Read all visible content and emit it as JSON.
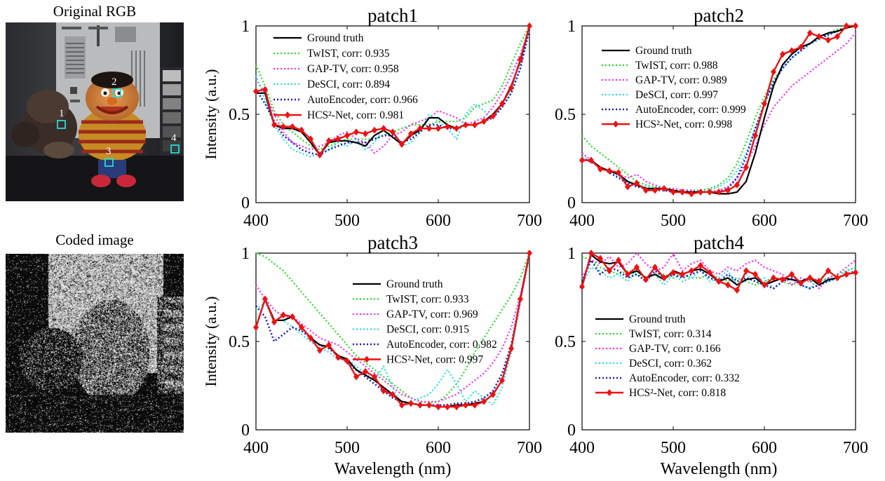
{
  "left_panel": {
    "rgb_label": "Original RGB",
    "coded_label": "Coded image",
    "patch_markers": [
      "1",
      "2",
      "3",
      "4"
    ]
  },
  "colors": {
    "ground_truth": "#000000",
    "twist": "#22dd22",
    "gaptv": "#ff22ff",
    "desci": "#22ddee",
    "autoencoder": "#1a1acc",
    "hcs2net": "#ee1111",
    "marker_box": "#22dddd"
  },
  "chart_data": [
    {
      "type": "line",
      "title": "patch1",
      "xlabel": "",
      "ylabel": "Intensity (a.u.)",
      "xlim": [
        400,
        700
      ],
      "ylim": [
        0,
        1
      ],
      "xticks": [
        "400",
        "500",
        "600",
        "700"
      ],
      "yticks": [
        "0",
        "0.5",
        "1"
      ],
      "legend_position": "top-left",
      "x": [
        400,
        410,
        420,
        430,
        440,
        450,
        460,
        470,
        480,
        490,
        500,
        510,
        520,
        530,
        540,
        550,
        560,
        570,
        580,
        590,
        600,
        610,
        620,
        630,
        640,
        650,
        660,
        670,
        680,
        690,
        700
      ],
      "series": [
        {
          "key": "gt",
          "label": "Ground truth",
          "values": [
            0.62,
            0.62,
            0.44,
            0.42,
            0.42,
            0.4,
            0.34,
            0.27,
            0.34,
            0.35,
            0.35,
            0.34,
            0.32,
            0.38,
            0.41,
            0.37,
            0.33,
            0.38,
            0.41,
            0.48,
            0.48,
            0.44,
            0.42,
            0.44,
            0.44,
            0.46,
            0.5,
            0.56,
            0.66,
            0.8,
            1.0
          ]
        },
        {
          "key": "twist",
          "label": "TwIST, corr: 0.935",
          "values": [
            0.78,
            0.66,
            0.52,
            0.44,
            0.4,
            0.36,
            0.32,
            0.3,
            0.32,
            0.34,
            0.36,
            0.36,
            0.36,
            0.36,
            0.38,
            0.4,
            0.42,
            0.44,
            0.44,
            0.44,
            0.46,
            0.46,
            0.46,
            0.48,
            0.54,
            0.56,
            0.58,
            0.66,
            0.78,
            0.9,
            1.0
          ]
        },
        {
          "key": "gaptv",
          "label": "GAP-TV, corr: 0.958",
          "values": [
            0.7,
            0.62,
            0.5,
            0.4,
            0.34,
            0.32,
            0.3,
            0.32,
            0.34,
            0.38,
            0.4,
            0.36,
            0.34,
            0.28,
            0.32,
            0.38,
            0.4,
            0.44,
            0.46,
            0.48,
            0.52,
            0.5,
            0.48,
            0.44,
            0.46,
            0.48,
            0.54,
            0.62,
            0.72,
            0.84,
            0.98
          ]
        },
        {
          "key": "desci",
          "label": "DeSCI, corr: 0.894",
          "values": [
            0.72,
            0.58,
            0.44,
            0.36,
            0.3,
            0.28,
            0.26,
            0.28,
            0.3,
            0.34,
            0.32,
            0.36,
            0.3,
            0.34,
            0.42,
            0.4,
            0.32,
            0.34,
            0.4,
            0.5,
            0.46,
            0.42,
            0.36,
            0.5,
            0.56,
            0.52,
            0.48,
            0.54,
            0.62,
            0.76,
            0.98
          ]
        },
        {
          "key": "ae",
          "label": "AutoEncoder, corr: 0.966",
          "values": [
            0.64,
            0.56,
            0.46,
            0.38,
            0.34,
            0.3,
            0.28,
            0.27,
            0.3,
            0.32,
            0.34,
            0.34,
            0.34,
            0.36,
            0.38,
            0.38,
            0.34,
            0.36,
            0.4,
            0.44,
            0.44,
            0.42,
            0.42,
            0.44,
            0.44,
            0.46,
            0.48,
            0.54,
            0.62,
            0.76,
            0.98
          ]
        },
        {
          "key": "hcs",
          "label": "HCS²-Net, corr: 0.981",
          "values": [
            0.63,
            0.64,
            0.44,
            0.43,
            0.43,
            0.41,
            0.36,
            0.27,
            0.35,
            0.36,
            0.38,
            0.4,
            0.39,
            0.41,
            0.42,
            0.4,
            0.33,
            0.39,
            0.42,
            0.42,
            0.42,
            0.43,
            0.42,
            0.44,
            0.44,
            0.46,
            0.49,
            0.56,
            0.65,
            0.81,
            1.0
          ]
        }
      ]
    },
    {
      "type": "line",
      "title": "patch2",
      "xlabel": "",
      "ylabel": "",
      "xlim": [
        400,
        700
      ],
      "ylim": [
        0,
        1
      ],
      "xticks": [
        "400",
        "500",
        "600",
        "700"
      ],
      "yticks": [
        "0",
        "0.5",
        "1"
      ],
      "legend_position": "top-left",
      "x": [
        400,
        410,
        420,
        430,
        440,
        450,
        460,
        470,
        480,
        490,
        500,
        510,
        520,
        530,
        540,
        550,
        560,
        570,
        580,
        590,
        600,
        610,
        620,
        630,
        640,
        650,
        660,
        670,
        680,
        690,
        700
      ],
      "series": [
        {
          "key": "gt",
          "label": "Ground truth",
          "values": [
            0.24,
            0.24,
            0.2,
            0.18,
            0.16,
            0.12,
            0.1,
            0.08,
            0.08,
            0.08,
            0.07,
            0.06,
            0.06,
            0.06,
            0.06,
            0.05,
            0.05,
            0.06,
            0.12,
            0.28,
            0.48,
            0.66,
            0.78,
            0.84,
            0.88,
            0.9,
            0.94,
            0.96,
            0.97,
            0.99,
            1.0
          ]
        },
        {
          "key": "twist",
          "label": "TwIST, corr: 0.988",
          "values": [
            0.38,
            0.32,
            0.28,
            0.24,
            0.2,
            0.16,
            0.12,
            0.1,
            0.09,
            0.08,
            0.07,
            0.07,
            0.07,
            0.07,
            0.08,
            0.1,
            0.14,
            0.22,
            0.34,
            0.48,
            0.6,
            0.7,
            0.76,
            0.82,
            0.86,
            0.9,
            0.93,
            0.96,
            0.98,
            0.99,
            1.0
          ]
        },
        {
          "key": "gaptv",
          "label": "GAP-TV, corr: 0.989",
          "values": [
            0.28,
            0.24,
            0.2,
            0.18,
            0.16,
            0.14,
            0.16,
            0.12,
            0.1,
            0.08,
            0.08,
            0.07,
            0.07,
            0.06,
            0.06,
            0.07,
            0.09,
            0.14,
            0.22,
            0.32,
            0.44,
            0.54,
            0.6,
            0.66,
            0.7,
            0.74,
            0.78,
            0.82,
            0.86,
            0.9,
            0.96
          ]
        },
        {
          "key": "desci",
          "label": "DeSCI, corr: 0.997",
          "values": [
            0.26,
            0.24,
            0.2,
            0.18,
            0.15,
            0.12,
            0.1,
            0.09,
            0.08,
            0.07,
            0.06,
            0.06,
            0.06,
            0.06,
            0.07,
            0.09,
            0.12,
            0.18,
            0.28,
            0.42,
            0.56,
            0.68,
            0.76,
            0.82,
            0.86,
            0.9,
            0.92,
            0.95,
            0.97,
            0.99,
            1.0
          ]
        },
        {
          "key": "ae",
          "label": "AutoEncoder, corr: 0.999",
          "values": [
            0.25,
            0.23,
            0.2,
            0.17,
            0.14,
            0.11,
            0.09,
            0.08,
            0.07,
            0.07,
            0.06,
            0.06,
            0.06,
            0.06,
            0.06,
            0.06,
            0.08,
            0.14,
            0.26,
            0.42,
            0.56,
            0.68,
            0.76,
            0.82,
            0.86,
            0.9,
            0.93,
            0.95,
            0.97,
            0.99,
            1.0
          ]
        },
        {
          "key": "hcs",
          "label": "HCS²-Net, corr: 0.998",
          "values": [
            0.24,
            0.24,
            0.19,
            0.18,
            0.17,
            0.09,
            0.11,
            0.07,
            0.07,
            0.08,
            0.06,
            0.06,
            0.05,
            0.06,
            0.06,
            0.06,
            0.07,
            0.1,
            0.2,
            0.38,
            0.56,
            0.74,
            0.84,
            0.86,
            0.88,
            0.96,
            0.94,
            0.92,
            0.94,
            1.0,
            1.0
          ]
        }
      ]
    },
    {
      "type": "line",
      "title": "patch3",
      "xlabel": "Wavelength (nm)",
      "ylabel": "Intensity (a.u.)",
      "xlim": [
        400,
        700
      ],
      "ylim": [
        0,
        1
      ],
      "xticks": [
        "400",
        "500",
        "600",
        "700"
      ],
      "yticks": [
        "0",
        "0.5",
        "1"
      ],
      "legend_position": "top-right",
      "x": [
        400,
        410,
        420,
        430,
        440,
        450,
        460,
        470,
        480,
        490,
        500,
        510,
        520,
        530,
        540,
        550,
        560,
        570,
        580,
        590,
        600,
        610,
        620,
        630,
        640,
        650,
        660,
        670,
        680,
        690,
        700
      ],
      "series": [
        {
          "key": "gt",
          "label": "Ground truth",
          "values": [
            0.58,
            0.74,
            0.62,
            0.62,
            0.64,
            0.58,
            0.52,
            0.48,
            0.47,
            0.42,
            0.4,
            0.34,
            0.31,
            0.28,
            0.24,
            0.2,
            0.16,
            0.15,
            0.14,
            0.14,
            0.13,
            0.13,
            0.14,
            0.14,
            0.15,
            0.16,
            0.2,
            0.28,
            0.46,
            0.74,
            1.0
          ]
        },
        {
          "key": "twist",
          "label": "TwIST, corr: 0.933",
          "values": [
            1.0,
            0.98,
            0.94,
            0.9,
            0.84,
            0.78,
            0.72,
            0.66,
            0.6,
            0.54,
            0.48,
            0.42,
            0.38,
            0.34,
            0.3,
            0.26,
            0.22,
            0.18,
            0.16,
            0.15,
            0.16,
            0.2,
            0.26,
            0.34,
            0.44,
            0.52,
            0.6,
            0.68,
            0.76,
            0.86,
            1.0
          ]
        },
        {
          "key": "gaptv",
          "label": "GAP-TV, corr: 0.969",
          "values": [
            0.82,
            0.74,
            0.68,
            0.64,
            0.64,
            0.6,
            0.56,
            0.52,
            0.5,
            0.48,
            0.44,
            0.4,
            0.36,
            0.32,
            0.28,
            0.24,
            0.2,
            0.18,
            0.16,
            0.16,
            0.16,
            0.18,
            0.2,
            0.24,
            0.28,
            0.32,
            0.38,
            0.46,
            0.58,
            0.76,
            1.0
          ]
        },
        {
          "key": "desci",
          "label": "DeSCI, corr: 0.915",
          "values": [
            0.68,
            0.72,
            0.62,
            0.62,
            0.58,
            0.54,
            0.5,
            0.46,
            0.44,
            0.4,
            0.4,
            0.36,
            0.32,
            0.28,
            0.36,
            0.24,
            0.14,
            0.16,
            0.18,
            0.2,
            0.26,
            0.34,
            0.26,
            0.16,
            0.22,
            0.18,
            0.14,
            0.24,
            0.44,
            0.72,
            0.98
          ]
        },
        {
          "key": "ae",
          "label": "AutoEncoder, corr: 0.982",
          "values": [
            0.7,
            0.64,
            0.5,
            0.54,
            0.58,
            0.56,
            0.52,
            0.48,
            0.46,
            0.42,
            0.38,
            0.34,
            0.3,
            0.26,
            0.22,
            0.18,
            0.16,
            0.15,
            0.14,
            0.14,
            0.14,
            0.14,
            0.15,
            0.15,
            0.16,
            0.18,
            0.22,
            0.32,
            0.48,
            0.74,
            1.0
          ]
        },
        {
          "key": "hcs",
          "label": "HCS²-Net, corr: 0.997",
          "values": [
            0.58,
            0.74,
            0.61,
            0.65,
            0.64,
            0.58,
            0.52,
            0.45,
            0.48,
            0.41,
            0.39,
            0.3,
            0.33,
            0.3,
            0.22,
            0.2,
            0.14,
            0.15,
            0.14,
            0.14,
            0.13,
            0.13,
            0.13,
            0.14,
            0.14,
            0.16,
            0.2,
            0.28,
            0.46,
            0.74,
            1.0
          ]
        }
      ]
    },
    {
      "type": "line",
      "title": "patch4",
      "xlabel": "Wavelength (nm)",
      "ylabel": "",
      "xlim": [
        400,
        700
      ],
      "ylim": [
        0,
        1
      ],
      "xticks": [
        "400",
        "500",
        "600",
        "700"
      ],
      "yticks": [
        "0",
        "0.5",
        "1"
      ],
      "legend_position": "bottom-left",
      "x": [
        400,
        410,
        420,
        430,
        440,
        450,
        460,
        470,
        480,
        490,
        500,
        510,
        520,
        530,
        540,
        550,
        560,
        570,
        580,
        590,
        600,
        610,
        620,
        630,
        640,
        650,
        660,
        670,
        680,
        690,
        700
      ],
      "series": [
        {
          "key": "gt",
          "label": "Ground truth",
          "values": [
            0.82,
            0.99,
            0.95,
            0.94,
            0.95,
            0.88,
            0.9,
            0.86,
            0.88,
            0.85,
            0.9,
            0.88,
            0.9,
            0.91,
            0.88,
            0.84,
            0.86,
            0.82,
            0.85,
            0.86,
            0.82,
            0.84,
            0.86,
            0.85,
            0.84,
            0.86,
            0.82,
            0.85,
            0.86,
            0.88,
            0.89
          ]
        },
        {
          "key": "twist",
          "label": "TwIST, corr: 0.314",
          "values": [
            0.98,
            0.96,
            0.92,
            0.9,
            0.88,
            0.9,
            0.88,
            0.86,
            0.88,
            0.88,
            0.86,
            0.88,
            0.86,
            0.86,
            0.88,
            0.86,
            0.84,
            0.86,
            0.84,
            0.82,
            0.84,
            0.86,
            0.84,
            0.82,
            0.84,
            0.84,
            0.84,
            0.86,
            0.88,
            0.9,
            0.92
          ]
        },
        {
          "key": "gaptv",
          "label": "GAP-TV, corr: 0.166",
          "values": [
            0.86,
            0.96,
            0.94,
            0.98,
            0.92,
            0.94,
            1.0,
            0.94,
            0.9,
            0.92,
            1.0,
            0.9,
            0.94,
            0.96,
            0.9,
            0.88,
            0.92,
            0.9,
            0.94,
            0.96,
            0.92,
            0.9,
            0.88,
            0.82,
            0.86,
            0.84,
            0.8,
            0.86,
            0.88,
            0.92,
            0.96
          ]
        },
        {
          "key": "desci",
          "label": "DeSCI, corr: 0.362",
          "values": [
            0.82,
            0.92,
            0.9,
            0.86,
            0.88,
            0.84,
            0.9,
            0.86,
            0.88,
            0.82,
            0.88,
            0.84,
            0.86,
            0.9,
            0.84,
            0.86,
            0.9,
            0.82,
            0.88,
            0.84,
            0.86,
            0.8,
            0.84,
            0.88,
            0.82,
            0.8,
            0.86,
            0.84,
            0.86,
            0.9,
            0.92
          ]
        },
        {
          "key": "ae",
          "label": "AutoEncoder, corr: 0.332",
          "values": [
            0.84,
            0.96,
            0.88,
            0.92,
            0.9,
            0.86,
            0.88,
            0.84,
            0.9,
            0.86,
            0.88,
            0.86,
            0.88,
            0.9,
            0.86,
            0.84,
            0.88,
            0.84,
            0.86,
            0.84,
            0.82,
            0.8,
            0.84,
            0.86,
            0.82,
            0.8,
            0.82,
            0.84,
            0.86,
            0.88,
            0.9
          ]
        },
        {
          "key": "hcs",
          "label": "HCS²-Net, corr: 0.818",
          "values": [
            0.81,
            1.0,
            0.97,
            0.9,
            0.96,
            0.88,
            0.92,
            0.85,
            0.92,
            0.86,
            0.89,
            0.88,
            0.9,
            0.93,
            0.89,
            0.84,
            0.82,
            0.79,
            0.9,
            0.88,
            0.82,
            0.86,
            0.85,
            0.88,
            0.83,
            0.86,
            0.84,
            0.9,
            0.86,
            0.88,
            0.89
          ]
        }
      ]
    }
  ]
}
